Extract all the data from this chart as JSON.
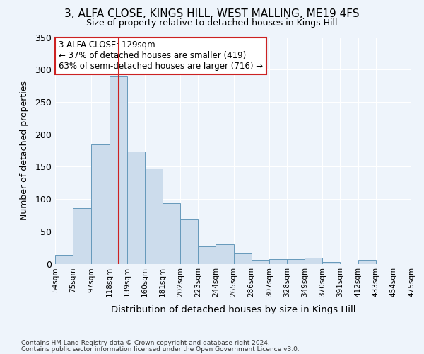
{
  "title": "3, ALFA CLOSE, KINGS HILL, WEST MALLING, ME19 4FS",
  "subtitle": "Size of property relative to detached houses in Kings Hill",
  "xlabel": "Distribution of detached houses by size in Kings Hill",
  "ylabel": "Number of detached properties",
  "bar_color": "#ccdcec",
  "bar_edge_color": "#6699bb",
  "background_color": "#eef4fb",
  "grid_color": "#ffffff",
  "vline_x": 129,
  "vline_color": "#cc2222",
  "annotation_text": "3 ALFA CLOSE: 129sqm\n← 37% of detached houses are smaller (419)\n63% of semi-detached houses are larger (716) →",
  "annotation_box_color": "#ffffff",
  "annotation_box_edge": "#cc2222",
  "footer1": "Contains HM Land Registry data © Crown copyright and database right 2024.",
  "footer2": "Contains public sector information licensed under the Open Government Licence v3.0.",
  "bins": [
    54,
    75,
    97,
    118,
    139,
    160,
    181,
    202,
    223,
    244,
    265,
    286,
    307,
    328,
    349,
    370,
    391,
    412,
    433,
    454,
    475
  ],
  "counts": [
    14,
    86,
    184,
    289,
    173,
    147,
    93,
    68,
    27,
    30,
    16,
    6,
    7,
    7,
    9,
    3,
    0,
    6,
    0,
    0
  ],
  "ylim": [
    0,
    350
  ],
  "yticks": [
    0,
    50,
    100,
    150,
    200,
    250,
    300,
    350
  ]
}
